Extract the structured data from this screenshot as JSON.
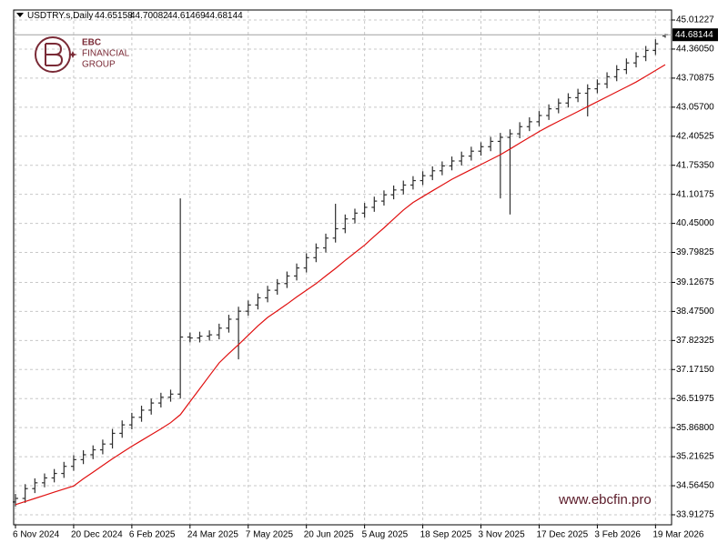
{
  "chart_data": {
    "type": "ohlc",
    "title": "USDTRY.s,Daily",
    "logo_lines": [
      "EBC",
      "FINANCIAL",
      "GROUP"
    ],
    "watermark": "www.ebcfin.pro",
    "bar_color": "#2e2e2e",
    "grid": true,
    "categories": [
      "6 Nov 2024",
      null,
      null,
      null,
      null,
      null,
      "20 Dec 2024",
      null,
      null,
      null,
      null,
      null,
      "6 Feb 2025",
      null,
      null,
      null,
      null,
      null,
      "24 Mar 2025",
      null,
      null,
      null,
      null,
      null,
      "7 May 2025",
      null,
      null,
      null,
      null,
      null,
      "20 Jun 2025",
      null,
      null,
      null,
      null,
      null,
      "5 Aug 2025",
      null,
      null,
      null,
      null,
      null,
      "18 Sep 2025",
      null,
      null,
      null,
      null,
      null,
      "3 Nov 2025",
      null,
      null,
      null,
      null,
      null,
      "17 Dec 2025",
      null,
      null,
      null,
      null,
      null,
      "3 Feb 2026",
      null,
      null,
      null,
      null,
      null,
      "19 Mar 2026",
      null
    ],
    "open": [
      34.2,
      34.28,
      34.5,
      34.63,
      34.74,
      34.84,
      35.0,
      35.15,
      35.26,
      35.37,
      35.5,
      35.74,
      35.93,
      36.1,
      36.26,
      36.42,
      36.55,
      36.62,
      37.9,
      37.88,
      37.92,
      37.95,
      38.1,
      38.3,
      38.48,
      38.62,
      38.78,
      38.95,
      39.1,
      39.27,
      39.45,
      39.68,
      39.9,
      40.12,
      40.33,
      40.55,
      40.68,
      40.81,
      40.95,
      41.09,
      41.2,
      41.31,
      41.41,
      41.52,
      41.63,
      41.74,
      41.85,
      41.96,
      42.07,
      42.17,
      42.29,
      42.38,
      42.46,
      42.62,
      42.73,
      42.87,
      43.02,
      43.15,
      43.27,
      43.37,
      43.47,
      43.58,
      43.74,
      43.9,
      44.05,
      44.19,
      44.33,
      44.65158
    ],
    "high": [
      34.38,
      34.6,
      34.73,
      34.84,
      34.94,
      35.1,
      35.25,
      35.36,
      35.47,
      35.6,
      35.84,
      36.03,
      36.2,
      36.36,
      36.52,
      36.65,
      36.72,
      41.01,
      38.0,
      38.02,
      38.05,
      38.2,
      38.4,
      38.58,
      38.72,
      38.88,
      39.05,
      39.2,
      39.37,
      39.55,
      39.78,
      40.0,
      40.22,
      40.89,
      40.65,
      40.78,
      40.91,
      41.05,
      41.19,
      41.3,
      41.41,
      41.51,
      41.62,
      41.73,
      41.84,
      41.95,
      42.06,
      42.17,
      42.27,
      42.39,
      42.48,
      42.56,
      42.72,
      42.83,
      42.97,
      43.12,
      43.25,
      43.37,
      43.47,
      43.57,
      43.68,
      43.84,
      44.0,
      44.15,
      44.29,
      44.43,
      44.58,
      44.70082
    ],
    "low": [
      34.1,
      34.18,
      34.4,
      34.53,
      34.64,
      34.74,
      34.9,
      35.05,
      35.16,
      35.27,
      35.4,
      35.64,
      35.83,
      36.0,
      36.16,
      36.32,
      36.45,
      36.52,
      37.78,
      37.78,
      37.82,
      37.85,
      38.0,
      37.4,
      38.38,
      38.52,
      38.68,
      38.85,
      39.0,
      39.17,
      39.35,
      39.58,
      39.8,
      40.02,
      40.23,
      40.45,
      40.58,
      40.71,
      40.85,
      40.99,
      41.1,
      41.21,
      41.31,
      41.42,
      41.53,
      41.64,
      41.75,
      41.86,
      41.97,
      42.07,
      41.01,
      40.65,
      42.36,
      42.52,
      42.63,
      42.77,
      42.92,
      43.05,
      43.17,
      42.85,
      43.37,
      43.48,
      43.64,
      43.8,
      43.95,
      44.09,
      44.23,
      44.61469
    ],
    "close": [
      34.28,
      34.5,
      34.63,
      34.74,
      34.84,
      35.0,
      35.15,
      35.26,
      35.37,
      35.5,
      35.74,
      35.93,
      36.1,
      36.26,
      36.42,
      36.55,
      36.62,
      37.9,
      37.88,
      37.92,
      37.95,
      38.1,
      38.3,
      38.48,
      38.62,
      38.78,
      38.95,
      39.1,
      39.27,
      39.45,
      39.68,
      39.9,
      40.12,
      40.33,
      40.55,
      40.68,
      40.81,
      40.95,
      41.09,
      41.2,
      41.31,
      41.41,
      41.52,
      41.63,
      41.74,
      41.85,
      41.96,
      42.07,
      42.17,
      42.29,
      42.38,
      42.46,
      42.62,
      42.73,
      42.87,
      43.02,
      43.15,
      43.27,
      43.37,
      43.47,
      43.58,
      43.74,
      43.9,
      44.05,
      44.19,
      44.33,
      44.48,
      44.68144
    ],
    "ma": {
      "color": "#e01010",
      "values": [
        34.14,
        34.21,
        34.28,
        34.35,
        34.42,
        34.49,
        34.56,
        34.72,
        34.87,
        35.02,
        35.17,
        35.31,
        35.45,
        35.58,
        35.71,
        35.84,
        35.98,
        36.16,
        36.45,
        36.74,
        37.03,
        37.32,
        37.53,
        37.73,
        37.94,
        38.15,
        38.34,
        38.49,
        38.64,
        38.8,
        38.95,
        39.1,
        39.27,
        39.44,
        39.62,
        39.79,
        39.96,
        40.16,
        40.35,
        40.55,
        40.75,
        40.92,
        41.05,
        41.18,
        41.31,
        41.44,
        41.55,
        41.66,
        41.77,
        41.88,
        41.99,
        42.12,
        42.25,
        42.38,
        42.51,
        42.63,
        42.74,
        42.85,
        42.96,
        43.07,
        43.18,
        43.29,
        43.4,
        43.51,
        43.62,
        43.75,
        43.88,
        44.01
      ]
    },
    "ylim": [
      33.688,
      45.237
    ],
    "yticks": [
      45.01227,
      {
        "value": 44.3605,
        "label": "44.36050"
      },
      43.70875,
      {
        "value": 43.057,
        "label": "43.05700"
      },
      42.40525,
      {
        "value": 41.7535,
        "label": "41.75350"
      },
      41.10175,
      {
        "value": 40.45,
        "label": "40.45000"
      },
      39.79825,
      39.12675,
      {
        "value": 38.475,
        "label": "38.47500"
      },
      37.82325,
      {
        "value": 37.1715,
        "label": "37.17150"
      },
      36.51975,
      {
        "value": 35.868,
        "label": "35.86800"
      },
      35.21625,
      {
        "value": 34.5645,
        "label": "34.56450"
      },
      33.91275
    ]
  }
}
